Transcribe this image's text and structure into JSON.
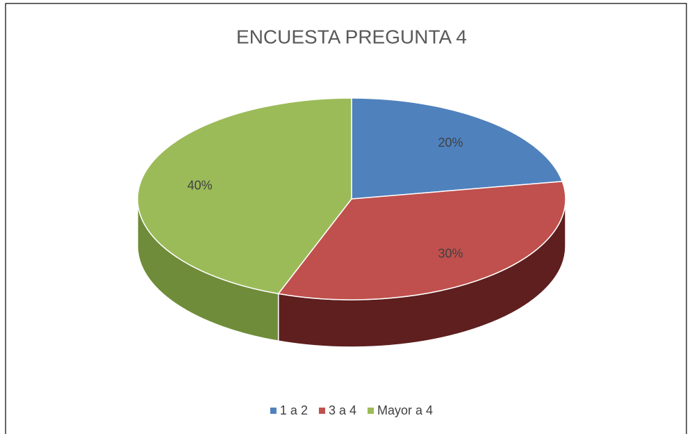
{
  "chart_data": {
    "type": "pie3d",
    "title": "ENCUESTA PREGUNTA 4",
    "categories": [
      "1 a 2",
      "3 a 4",
      "Mayor a 4"
    ],
    "values": [
      20,
      30,
      40
    ],
    "value_labels": [
      "20%",
      "30%",
      "40%"
    ],
    "colors": [
      "#4f81bd",
      "#c0504d",
      "#9bbb59"
    ],
    "side_colors": [
      "#2c4a6e",
      "#5e1f1e",
      "#6f8c3a"
    ],
    "legend": "bottom"
  }
}
